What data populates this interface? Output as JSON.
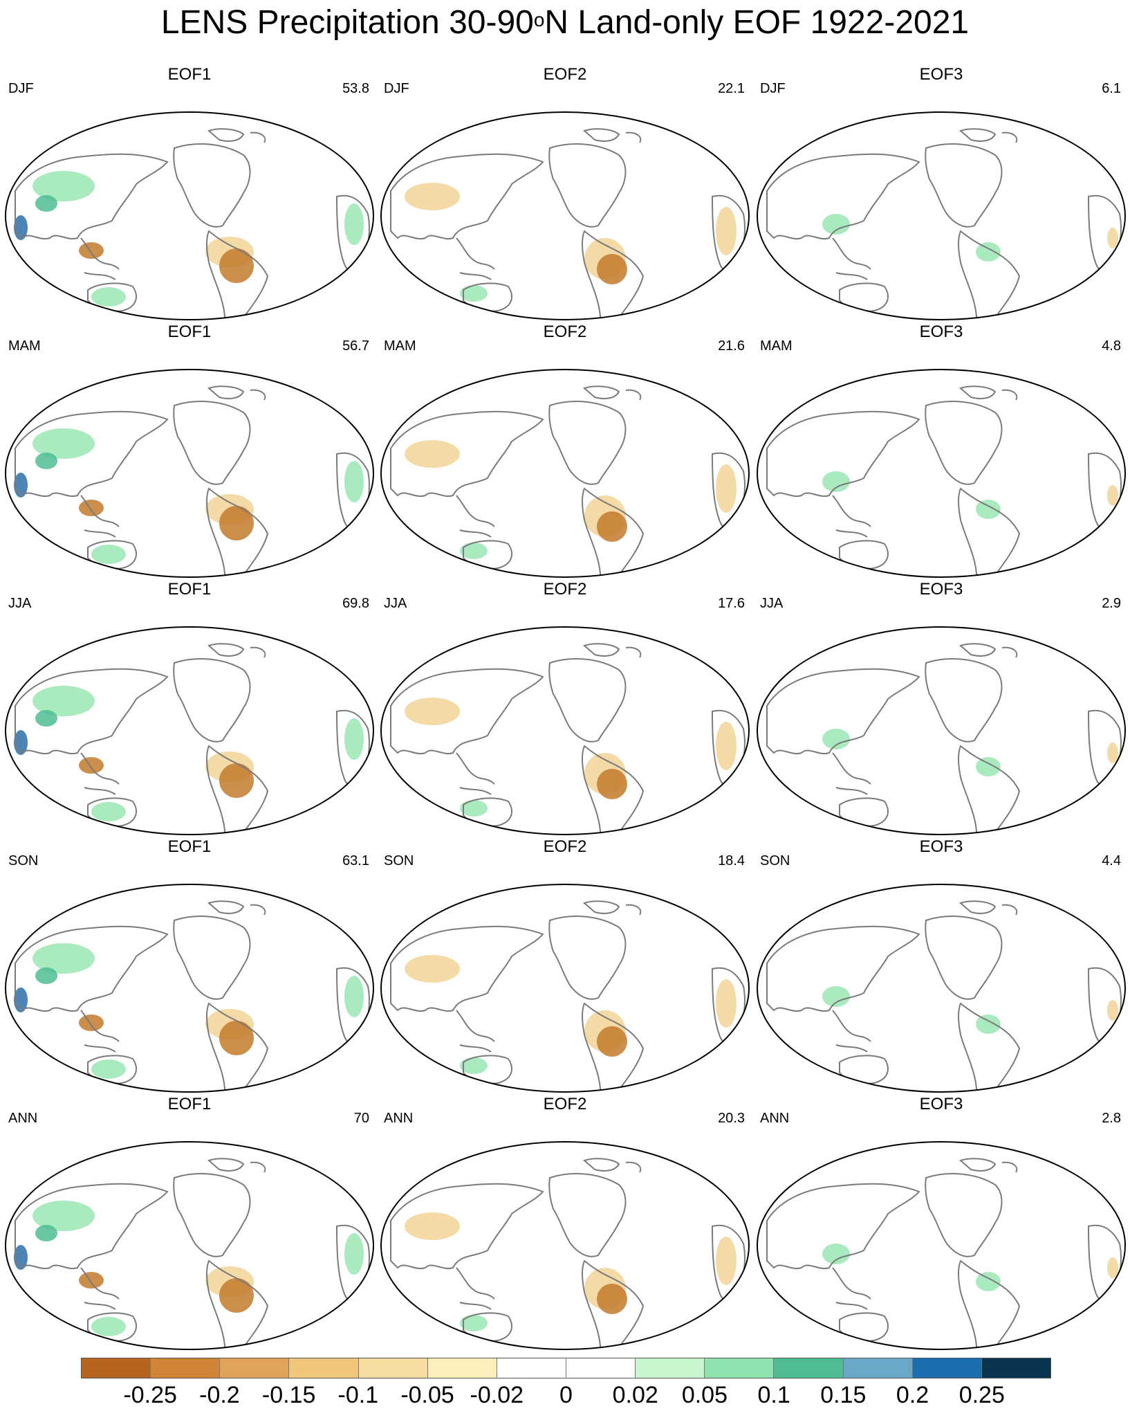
{
  "title": {
    "main": "LENS Precipitation 30-90",
    "sup": "o",
    "tail": "N Land-only EOF 1922-2021"
  },
  "panels": [
    {
      "season": "DJF",
      "eof": "EOF1",
      "pct": "53.8"
    },
    {
      "season": "DJF",
      "eof": "EOF2",
      "pct": "22.1"
    },
    {
      "season": "DJF",
      "eof": "EOF3",
      "pct": "6.1"
    },
    {
      "season": "MAM",
      "eof": "EOF1",
      "pct": "56.7"
    },
    {
      "season": "MAM",
      "eof": "EOF2",
      "pct": "21.6"
    },
    {
      "season": "MAM",
      "eof": "EOF3",
      "pct": "4.8"
    },
    {
      "season": "JJA",
      "eof": "EOF1",
      "pct": "69.8"
    },
    {
      "season": "JJA",
      "eof": "EOF2",
      "pct": "17.6"
    },
    {
      "season": "JJA",
      "eof": "EOF3",
      "pct": "2.9"
    },
    {
      "season": "SON",
      "eof": "EOF1",
      "pct": "63.1"
    },
    {
      "season": "SON",
      "eof": "EOF2",
      "pct": "18.4"
    },
    {
      "season": "SON",
      "eof": "EOF3",
      "pct": "4.4"
    },
    {
      "season": "ANN",
      "eof": "EOF1",
      "pct": "70"
    },
    {
      "season": "ANN",
      "eof": "EOF2",
      "pct": "20.3"
    },
    {
      "season": "ANN",
      "eof": "EOF3",
      "pct": "2.8"
    }
  ],
  "colorbar": {
    "colors": [
      "#b5651d",
      "#d18337",
      "#e0a35a",
      "#f0c67a",
      "#f6dc9e",
      "#fbefbc",
      "#ffffff",
      "#ffffff",
      "#c8f6cf",
      "#8ee3b0",
      "#4fbd93",
      "#6aa8c8",
      "#1b6fae",
      "#08344f"
    ],
    "ticks": [
      "-0.25",
      "-0.2",
      "-0.15",
      "-0.1",
      "-0.05",
      "-0.02",
      "0",
      "0.02",
      "0.05",
      "0.1",
      "0.15",
      "0.2",
      "0.25"
    ]
  },
  "palette": {
    "brown": "#c27a2c",
    "tan": "#f2d398",
    "green": "#9be6b4",
    "teal": "#4fbd93",
    "blue": "#2c6fa8",
    "coast": "#7a7a7a"
  }
}
